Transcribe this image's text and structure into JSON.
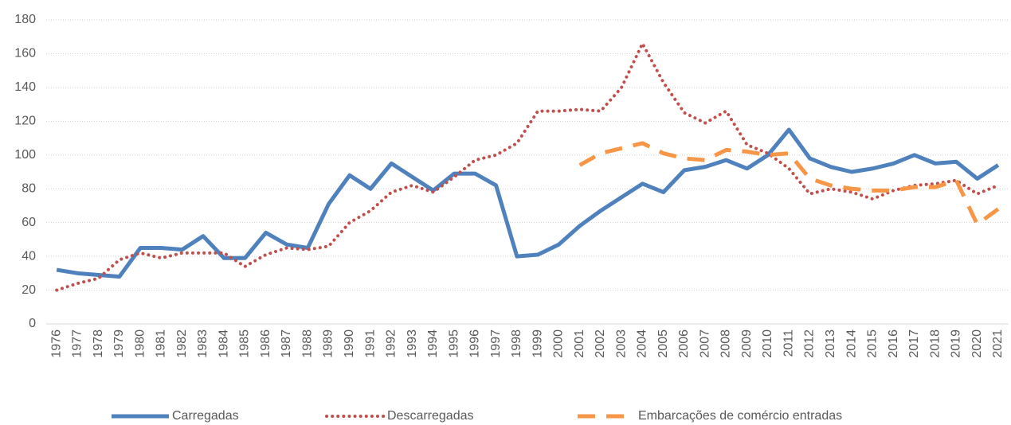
{
  "chart_data": {
    "type": "line",
    "categories": [
      "1976",
      "1977",
      "1978",
      "1979",
      "1980",
      "1981",
      "1982",
      "1983",
      "1984",
      "1985",
      "1986",
      "1987",
      "1988",
      "1989",
      "1990",
      "1991",
      "1992",
      "1993",
      "1994",
      "1995",
      "1996",
      "1997",
      "1998",
      "1999",
      "2000",
      "2001",
      "2002",
      "2003",
      "2004",
      "2005",
      "2006",
      "2007",
      "2008",
      "2009",
      "2010",
      "2011",
      "2012",
      "2013",
      "2014",
      "2015",
      "2016",
      "2017",
      "2018",
      "2019",
      "2020",
      "2021"
    ],
    "series": [
      {
        "name": "Carregadas",
        "color": "#4f81bd",
        "style": "solid",
        "values": [
          32,
          30,
          29,
          28,
          45,
          45,
          44,
          52,
          39,
          39,
          54,
          47,
          45,
          71,
          88,
          80,
          95,
          87,
          79,
          89,
          89,
          82,
          40,
          41,
          47,
          58,
          67,
          75,
          83,
          78,
          91,
          93,
          97,
          92,
          100,
          115,
          98,
          93,
          90,
          92,
          95,
          100,
          95,
          96,
          86,
          94
        ]
      },
      {
        "name": "Descarregadas",
        "color": "#c0504d",
        "style": "dotted",
        "values": [
          20,
          24,
          27,
          38,
          42,
          39,
          42,
          42,
          42,
          34,
          41,
          45,
          44,
          46,
          60,
          67,
          78,
          82,
          78,
          87,
          97,
          100,
          107,
          126,
          126,
          127,
          126,
          140,
          166,
          143,
          125,
          119,
          126,
          106,
          101,
          92,
          77,
          80,
          78,
          74,
          79,
          82,
          83,
          85,
          77,
          82
        ]
      },
      {
        "name": "Embarcações de comércio entradas",
        "color": "#f79646",
        "style": "dashed",
        "values": [
          null,
          null,
          null,
          null,
          null,
          null,
          null,
          null,
          null,
          null,
          null,
          null,
          null,
          null,
          null,
          null,
          null,
          null,
          null,
          null,
          null,
          null,
          null,
          null,
          null,
          94,
          101,
          104,
          107,
          101,
          98,
          97,
          103,
          102,
          100,
          101,
          86,
          82,
          80,
          79,
          79,
          81,
          81,
          85,
          59,
          68
        ]
      }
    ],
    "ylim": [
      0,
      180
    ],
    "yticks": [
      0,
      20,
      40,
      60,
      80,
      100,
      120,
      140,
      160,
      180
    ],
    "grid": true,
    "legend": "bottom"
  }
}
